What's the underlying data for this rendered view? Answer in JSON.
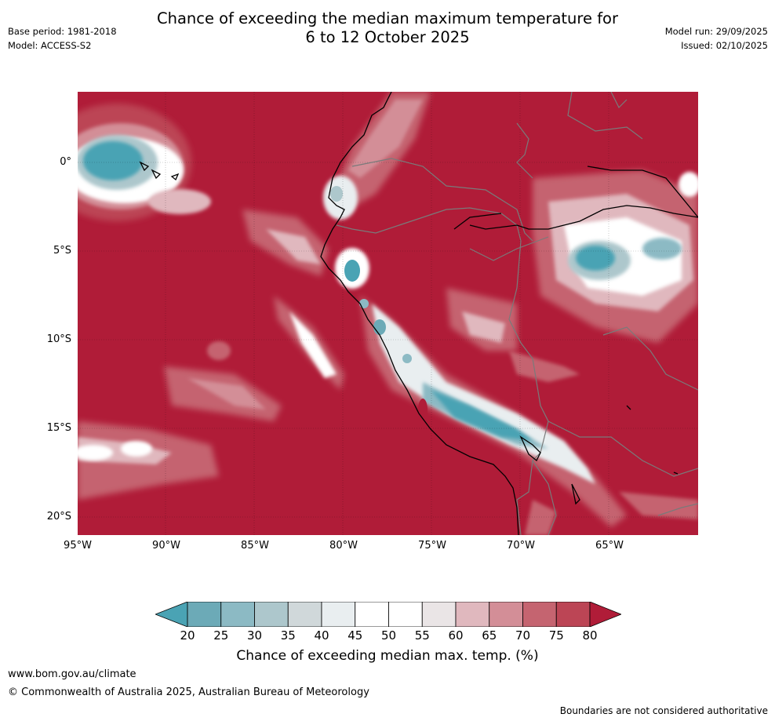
{
  "title_line1": "Chance of exceeding the median maximum temperature for",
  "title_line2": "6 to 12 October 2025",
  "base_period": "Base period: 1981-2018",
  "model": "Model: ACCESS-S2",
  "model_run": "Model run: 29/09/2025",
  "issued": "Issued: 02/10/2025",
  "lat_labels": [
    "0°",
    "5°S",
    "10°S",
    "15°S",
    "20°S"
  ],
  "lon_labels": [
    "95°W",
    "90°W",
    "85°W",
    "80°W",
    "75°W",
    "70°W",
    "65°W"
  ],
  "colorbar": {
    "ticks": [
      "20",
      "25",
      "30",
      "35",
      "40",
      "45",
      "50",
      "55",
      "60",
      "65",
      "70",
      "75",
      "80"
    ],
    "colors": [
      "#4aa3b4",
      "#6caab7",
      "#8cbac4",
      "#adc7cc",
      "#d0d8da",
      "#e9eef0",
      "#ffffff",
      "#ffffff",
      "#eae5e6",
      "#e0b8be",
      "#d38e97",
      "#c56470",
      "#bc4555",
      "#b01c38"
    ],
    "title": "Chance of exceeding median max. temp. (%)"
  },
  "footer_url": "www.bom.gov.au/climate",
  "footer_copyright": "© Commonwealth of Australia 2025, Australian Bureau of Meteorology",
  "disclaimer": "Boundaries are not considered authoritative"
}
